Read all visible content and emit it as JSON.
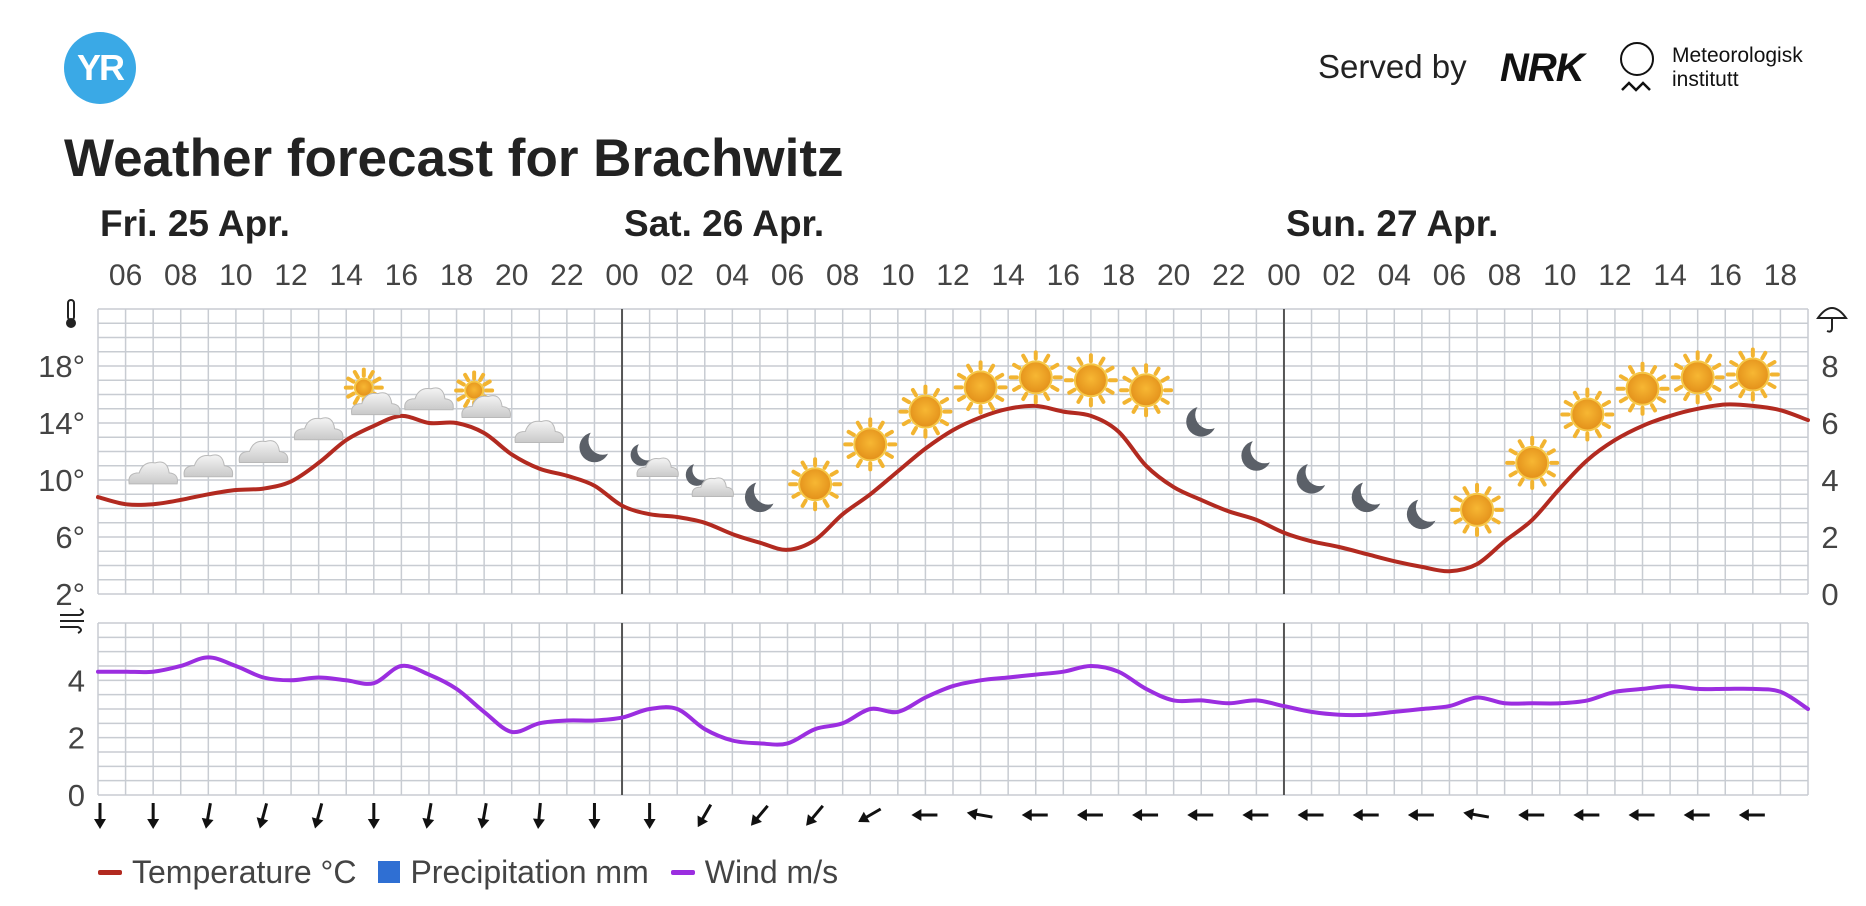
{
  "header": {
    "logo_text": "YR",
    "served_by": "Served by",
    "nrk_logo": "NRK",
    "met_logo": "Meteorologisk\ninstitutt"
  },
  "page_title": "Weather forecast for Brachwitz",
  "legend": [
    {
      "label": "Temperature °C",
      "color": "#b22a20",
      "kind": "line"
    },
    {
      "label": "Precipitation mm",
      "color": "#2f6fd3",
      "kind": "box"
    },
    {
      "label": "Wind m/s",
      "color": "#9b2ee0",
      "kind": "line"
    }
  ],
  "chart_data": [
    {
      "type": "line",
      "days": [
        {
          "label": "Fri. 25 Apr.",
          "start_hour": 5
        },
        {
          "label": "Sat. 26 Apr.",
          "start_hour": 24
        },
        {
          "label": "Sun. 27 Apr.",
          "start_hour": 48
        }
      ],
      "hour_ticks": [
        {
          "h": 6,
          "label": "06"
        },
        {
          "h": 8,
          "label": "08"
        },
        {
          "h": 10,
          "label": "10"
        },
        {
          "h": 12,
          "label": "12"
        },
        {
          "h": 14,
          "label": "14"
        },
        {
          "h": 16,
          "label": "16"
        },
        {
          "h": 18,
          "label": "18"
        },
        {
          "h": 20,
          "label": "20"
        },
        {
          "h": 22,
          "label": "22"
        },
        {
          "h": 24,
          "label": "00"
        },
        {
          "h": 26,
          "label": "02"
        },
        {
          "h": 28,
          "label": "04"
        },
        {
          "h": 30,
          "label": "06"
        },
        {
          "h": 32,
          "label": "08"
        },
        {
          "h": 34,
          "label": "10"
        },
        {
          "h": 36,
          "label": "12"
        },
        {
          "h": 38,
          "label": "14"
        },
        {
          "h": 40,
          "label": "16"
        },
        {
          "h": 42,
          "label": "18"
        },
        {
          "h": 44,
          "label": "20"
        },
        {
          "h": 46,
          "label": "22"
        },
        {
          "h": 48,
          "label": "00"
        },
        {
          "h": 50,
          "label": "02"
        },
        {
          "h": 52,
          "label": "04"
        },
        {
          "h": 54,
          "label": "06"
        },
        {
          "h": 56,
          "label": "08"
        },
        {
          "h": 58,
          "label": "10"
        },
        {
          "h": 60,
          "label": "12"
        },
        {
          "h": 62,
          "label": "14"
        },
        {
          "h": 64,
          "label": "16"
        },
        {
          "h": 66,
          "label": "18"
        }
      ],
      "x_range_hours": [
        5,
        67
      ],
      "temperature": {
        "name": "Temperature °C",
        "color": "#b22a20",
        "ylim": [
          2,
          22
        ],
        "yticks": [
          {
            "v": 2,
            "label": "2°"
          },
          {
            "v": 6,
            "label": "6°"
          },
          {
            "v": 10,
            "label": "10°"
          },
          {
            "v": 14,
            "label": "14°"
          },
          {
            "v": 18,
            "label": "18°"
          }
        ],
        "x": [
          5,
          6,
          7,
          8,
          9,
          10,
          11,
          12,
          13,
          14,
          15,
          16,
          17,
          18,
          19,
          20,
          21,
          22,
          23,
          24,
          25,
          26,
          27,
          28,
          29,
          30,
          31,
          32,
          33,
          34,
          35,
          36,
          37,
          38,
          39,
          40,
          41,
          42,
          43,
          44,
          45,
          46,
          47,
          48,
          49,
          50,
          51,
          52,
          53,
          54,
          55,
          56,
          57,
          58,
          59,
          60,
          61,
          62,
          63,
          64,
          65,
          66,
          67
        ],
        "values": [
          8.8,
          8.3,
          8.3,
          8.6,
          9.0,
          9.3,
          9.4,
          9.9,
          11.2,
          12.8,
          13.8,
          14.5,
          14.0,
          14.0,
          13.3,
          11.8,
          10.8,
          10.3,
          9.6,
          8.2,
          7.6,
          7.4,
          7.0,
          6.2,
          5.6,
          5.1,
          5.8,
          7.6,
          9.0,
          10.6,
          12.2,
          13.5,
          14.4,
          15.0,
          15.2,
          14.8,
          14.5,
          13.4,
          11.0,
          9.5,
          8.6,
          7.8,
          7.2,
          6.3,
          5.7,
          5.3,
          4.8,
          4.3,
          3.9,
          3.6,
          4.1,
          5.7,
          7.2,
          9.4,
          11.4,
          12.8,
          13.8,
          14.5,
          15.0,
          15.3,
          15.2,
          14.9,
          14.2
        ]
      },
      "precipitation": {
        "name": "Precipitation mm",
        "color": "#2f6fd3",
        "ylim": [
          0,
          10
        ],
        "yticks": [
          {
            "v": 0,
            "label": "0"
          },
          {
            "v": 2,
            "label": "2"
          },
          {
            "v": 4,
            "label": "4"
          },
          {
            "v": 6,
            "label": "6"
          },
          {
            "v": 8,
            "label": "8"
          }
        ],
        "values": []
      },
      "weather_symbols": [
        {
          "h": 7,
          "icon": "cloud-icon",
          "t": 10.5
        },
        {
          "h": 9,
          "icon": "cloud-icon",
          "t": 11.0
        },
        {
          "h": 11,
          "icon": "cloud-icon",
          "t": 12.0
        },
        {
          "h": 13,
          "icon": "cloud-icon",
          "t": 13.6
        },
        {
          "h": 15,
          "icon": "partly-cloudy-sun-icon",
          "t": 15.5
        },
        {
          "h": 17,
          "icon": "cloud-icon",
          "t": 15.7
        },
        {
          "h": 19,
          "icon": "partly-cloudy-sun-icon",
          "t": 15.3
        },
        {
          "h": 21,
          "icon": "cloud-icon",
          "t": 13.4
        },
        {
          "h": 23,
          "icon": "moon-icon",
          "t": 12.3
        },
        {
          "h": 25,
          "icon": "partly-cloudy-moon-icon",
          "t": 11.2
        },
        {
          "h": 27,
          "icon": "partly-cloudy-moon-icon",
          "t": 9.8
        },
        {
          "h": 29,
          "icon": "moon-icon",
          "t": 8.8
        },
        {
          "h": 31,
          "icon": "sun-icon",
          "t": 9.7
        },
        {
          "h": 33,
          "icon": "sun-icon",
          "t": 12.5
        },
        {
          "h": 35,
          "icon": "sun-icon",
          "t": 14.8
        },
        {
          "h": 37,
          "icon": "sun-icon",
          "t": 16.5
        },
        {
          "h": 39,
          "icon": "sun-icon",
          "t": 17.2
        },
        {
          "h": 41,
          "icon": "sun-icon",
          "t": 17.0
        },
        {
          "h": 43,
          "icon": "sun-icon",
          "t": 16.3
        },
        {
          "h": 45,
          "icon": "moon-icon",
          "t": 14.1
        },
        {
          "h": 47,
          "icon": "moon-icon",
          "t": 11.7
        },
        {
          "h": 49,
          "icon": "moon-icon",
          "t": 10.1
        },
        {
          "h": 51,
          "icon": "moon-icon",
          "t": 8.8
        },
        {
          "h": 53,
          "icon": "moon-icon",
          "t": 7.6
        },
        {
          "h": 55,
          "icon": "sun-icon",
          "t": 7.9
        },
        {
          "h": 57,
          "icon": "sun-icon",
          "t": 11.2
        },
        {
          "h": 59,
          "icon": "sun-icon",
          "t": 14.6
        },
        {
          "h": 61,
          "icon": "sun-icon",
          "t": 16.4
        },
        {
          "h": 63,
          "icon": "sun-icon",
          "t": 17.2
        },
        {
          "h": 65,
          "icon": "sun-icon",
          "t": 17.4
        }
      ],
      "wind": {
        "name": "Wind m/s",
        "color": "#9b2ee0",
        "ylim": [
          0,
          6
        ],
        "yticks": [
          {
            "v": 0,
            "label": "0"
          },
          {
            "v": 2,
            "label": "2"
          },
          {
            "v": 4,
            "label": "4"
          }
        ],
        "x": [
          5,
          6,
          7,
          8,
          9,
          10,
          11,
          12,
          13,
          14,
          15,
          16,
          17,
          18,
          19,
          20,
          21,
          22,
          23,
          24,
          25,
          26,
          27,
          28,
          29,
          30,
          31,
          32,
          33,
          34,
          35,
          36,
          37,
          38,
          39,
          40,
          41,
          42,
          43,
          44,
          45,
          46,
          47,
          48,
          49,
          50,
          51,
          52,
          53,
          54,
          55,
          56,
          57,
          58,
          59,
          60,
          61,
          62,
          63,
          64,
          65,
          66,
          67
        ],
        "values": [
          4.3,
          4.3,
          4.3,
          4.5,
          4.8,
          4.5,
          4.1,
          4.0,
          4.1,
          4.0,
          3.9,
          4.5,
          4.2,
          3.7,
          2.9,
          2.2,
          2.5,
          2.6,
          2.6,
          2.7,
          3.0,
          3.0,
          2.3,
          1.9,
          1.8,
          1.8,
          2.3,
          2.5,
          3.0,
          2.9,
          3.4,
          3.8,
          4.0,
          4.1,
          4.2,
          4.3,
          4.5,
          4.3,
          3.7,
          3.3,
          3.3,
          3.2,
          3.3,
          3.1,
          2.9,
          2.8,
          2.8,
          2.9,
          3.0,
          3.1,
          3.4,
          3.2,
          3.2,
          3.2,
          3.3,
          3.6,
          3.7,
          3.8,
          3.7,
          3.7,
          3.7,
          3.6,
          3.0
        ]
      },
      "wind_direction_deg": [
        0,
        0,
        10,
        15,
        15,
        0,
        10,
        10,
        5,
        0,
        0,
        30,
        40,
        40,
        60,
        90,
        100,
        90,
        90,
        90,
        90,
        90,
        90,
        90,
        90,
        100,
        90,
        90,
        90,
        90,
        90
      ]
    }
  ]
}
